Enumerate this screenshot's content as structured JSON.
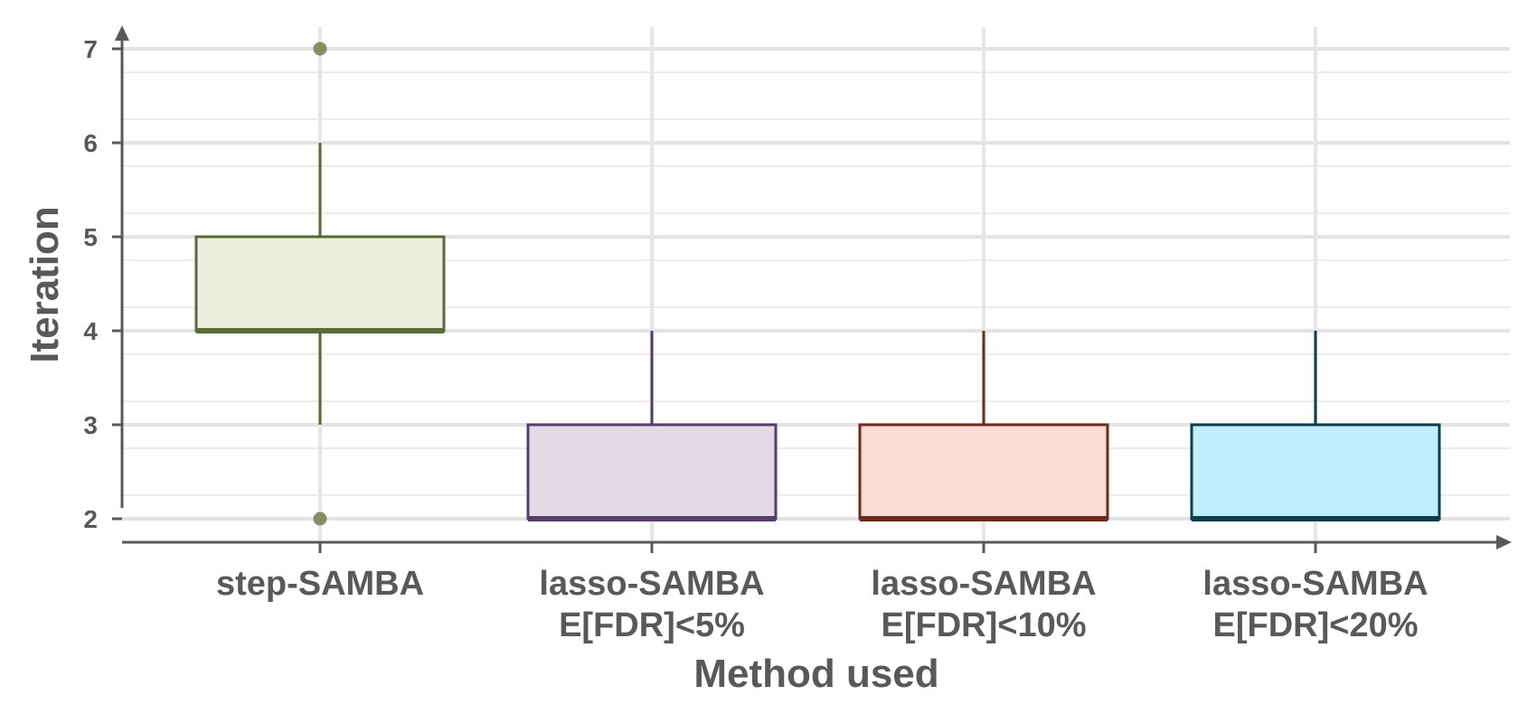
{
  "chart_data": {
    "type": "box",
    "xlabel": "Method used",
    "ylabel": "Iteration",
    "ylim": [
      1.75,
      7.2
    ],
    "y_ticks": [
      2,
      3,
      4,
      5,
      6,
      7
    ],
    "grid": true,
    "categories": [
      {
        "lines": [
          "step-SAMBA"
        ]
      },
      {
        "lines": [
          "lasso-SAMBA",
          "E[FDR]<5%"
        ]
      },
      {
        "lines": [
          "lasso-SAMBA",
          "E[FDR]<10%"
        ]
      },
      {
        "lines": [
          "lasso-SAMBA",
          "E[FDR]<20%"
        ]
      }
    ],
    "boxes": [
      {
        "min": 3,
        "q1": 4,
        "median": 4,
        "q3": 5,
        "max": 6,
        "outliers": [
          7,
          2
        ],
        "fill": "#ECEFDE",
        "stroke": "#5A6B37",
        "outlier_color": "#6F7F4E"
      },
      {
        "min": 2,
        "q1": 2,
        "median": 2,
        "q3": 3,
        "max": 4,
        "outliers": [],
        "fill": "#E2DAE7",
        "stroke": "#563D6A",
        "outlier_color": "#563D6A"
      },
      {
        "min": 2,
        "q1": 2,
        "median": 2,
        "q3": 3,
        "max": 4,
        "outliers": [],
        "fill": "#FADBD5",
        "stroke": "#6E2C1F",
        "outlier_color": "#6E2C1F"
      },
      {
        "min": 2,
        "q1": 2,
        "median": 2,
        "q3": 3,
        "max": 4,
        "outliers": [],
        "fill": "#C1EEFC",
        "stroke": "#0C3E4E",
        "outlier_color": "#0C3E4E"
      }
    ]
  }
}
